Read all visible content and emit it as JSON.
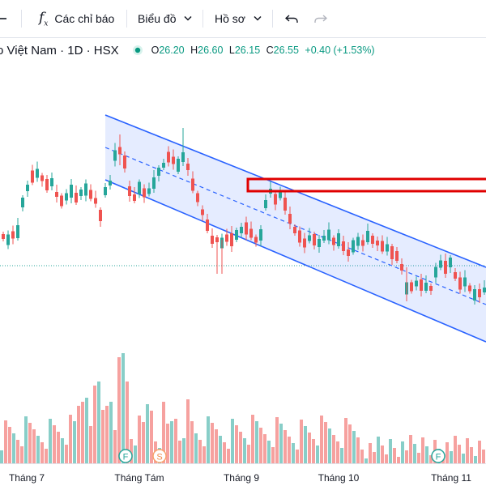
{
  "toolbar": {
    "indicators_label": "Các chỉ báo",
    "chart_label": "Biểu đồ",
    "profile_label": "Hồ sơ"
  },
  "symbol": {
    "title": "o Việt Nam · 1D · HSX",
    "open_label": "O",
    "open": "26.20",
    "high_label": "H",
    "high": "26.60",
    "low_label": "L",
    "low": "26.15",
    "close_label": "C",
    "close": "26.55",
    "change": "+0.40 (+1.53%)"
  },
  "xaxis": {
    "labels": [
      "Tháng 7",
      "Tháng Tám",
      "Tháng 9",
      "Tháng 10",
      "Tháng 11"
    ]
  },
  "events": {
    "e1": "F",
    "e2": "S",
    "e3": "F"
  },
  "colors": {
    "up": "#26a69a",
    "down": "#ef5350",
    "channel": "#2962ff",
    "box": "#e00000"
  }
}
